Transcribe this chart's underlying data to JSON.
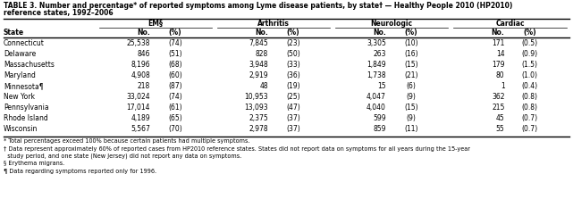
{
  "title_line1": "TABLE 3. Number and percentage* of reported symptoms among Lyme disease patients, by state† — Healthy People 2010 (HP2010)",
  "title_line2": "reference states, 1992–2006",
  "col_groups": [
    "EM§",
    "Arthritis",
    "Neurologic",
    "Cardiac"
  ],
  "sub_cols": [
    "No.",
    "(%)"
  ],
  "states": [
    "Connecticut",
    "Delaware",
    "Massachusetts",
    "Maryland",
    "Minnesota¶",
    "New York",
    "Pennsylvania",
    "Rhode Island",
    "Wisconsin"
  ],
  "data_formatted": [
    [
      "25,538",
      "(74)",
      "7,845",
      "(23)",
      "3,305",
      "(10)",
      "171",
      "(0.5)"
    ],
    [
      "846",
      "(51)",
      "828",
      "(50)",
      "263",
      "(16)",
      "14",
      "(0.9)"
    ],
    [
      "8,196",
      "(68)",
      "3,948",
      "(33)",
      "1,849",
      "(15)",
      "179",
      "(1.5)"
    ],
    [
      "4,908",
      "(60)",
      "2,919",
      "(36)",
      "1,738",
      "(21)",
      "80",
      "(1.0)"
    ],
    [
      "218",
      "(87)",
      "48",
      "(19)",
      "15",
      "(6)",
      "1",
      "(0.4)"
    ],
    [
      "33,024",
      "(74)",
      "10,953",
      "(25)",
      "4,047",
      "(9)",
      "362",
      "(0.8)"
    ],
    [
      "17,014",
      "(61)",
      "13,093",
      "(47)",
      "4,040",
      "(15)",
      "215",
      "(0.8)"
    ],
    [
      "4,189",
      "(65)",
      "2,375",
      "(37)",
      "599",
      "(9)",
      "45",
      "(0.7)"
    ],
    [
      "5,567",
      "(70)",
      "2,978",
      "(37)",
      "859",
      "(11)",
      "55",
      "(0.7)"
    ]
  ],
  "footnotes": [
    "* Total percentages exceed 100% because certain patients had multiple symptoms.",
    "† Data represent approximately 60% of reported cases from HP2010 reference states. States did not report data on symptoms for all years during the 15-year",
    "  study period, and one state (New Jersey) did not report any data on symptoms.",
    "§ Erythema migrans.",
    "¶ Data regarding symptoms reported only for 1996."
  ],
  "bg_color": "#ffffff",
  "line_color": "#000000",
  "text_color": "#000000",
  "title_fontsize": 5.5,
  "header_fontsize": 5.5,
  "data_fontsize": 5.5,
  "fn_fontsize": 4.7
}
